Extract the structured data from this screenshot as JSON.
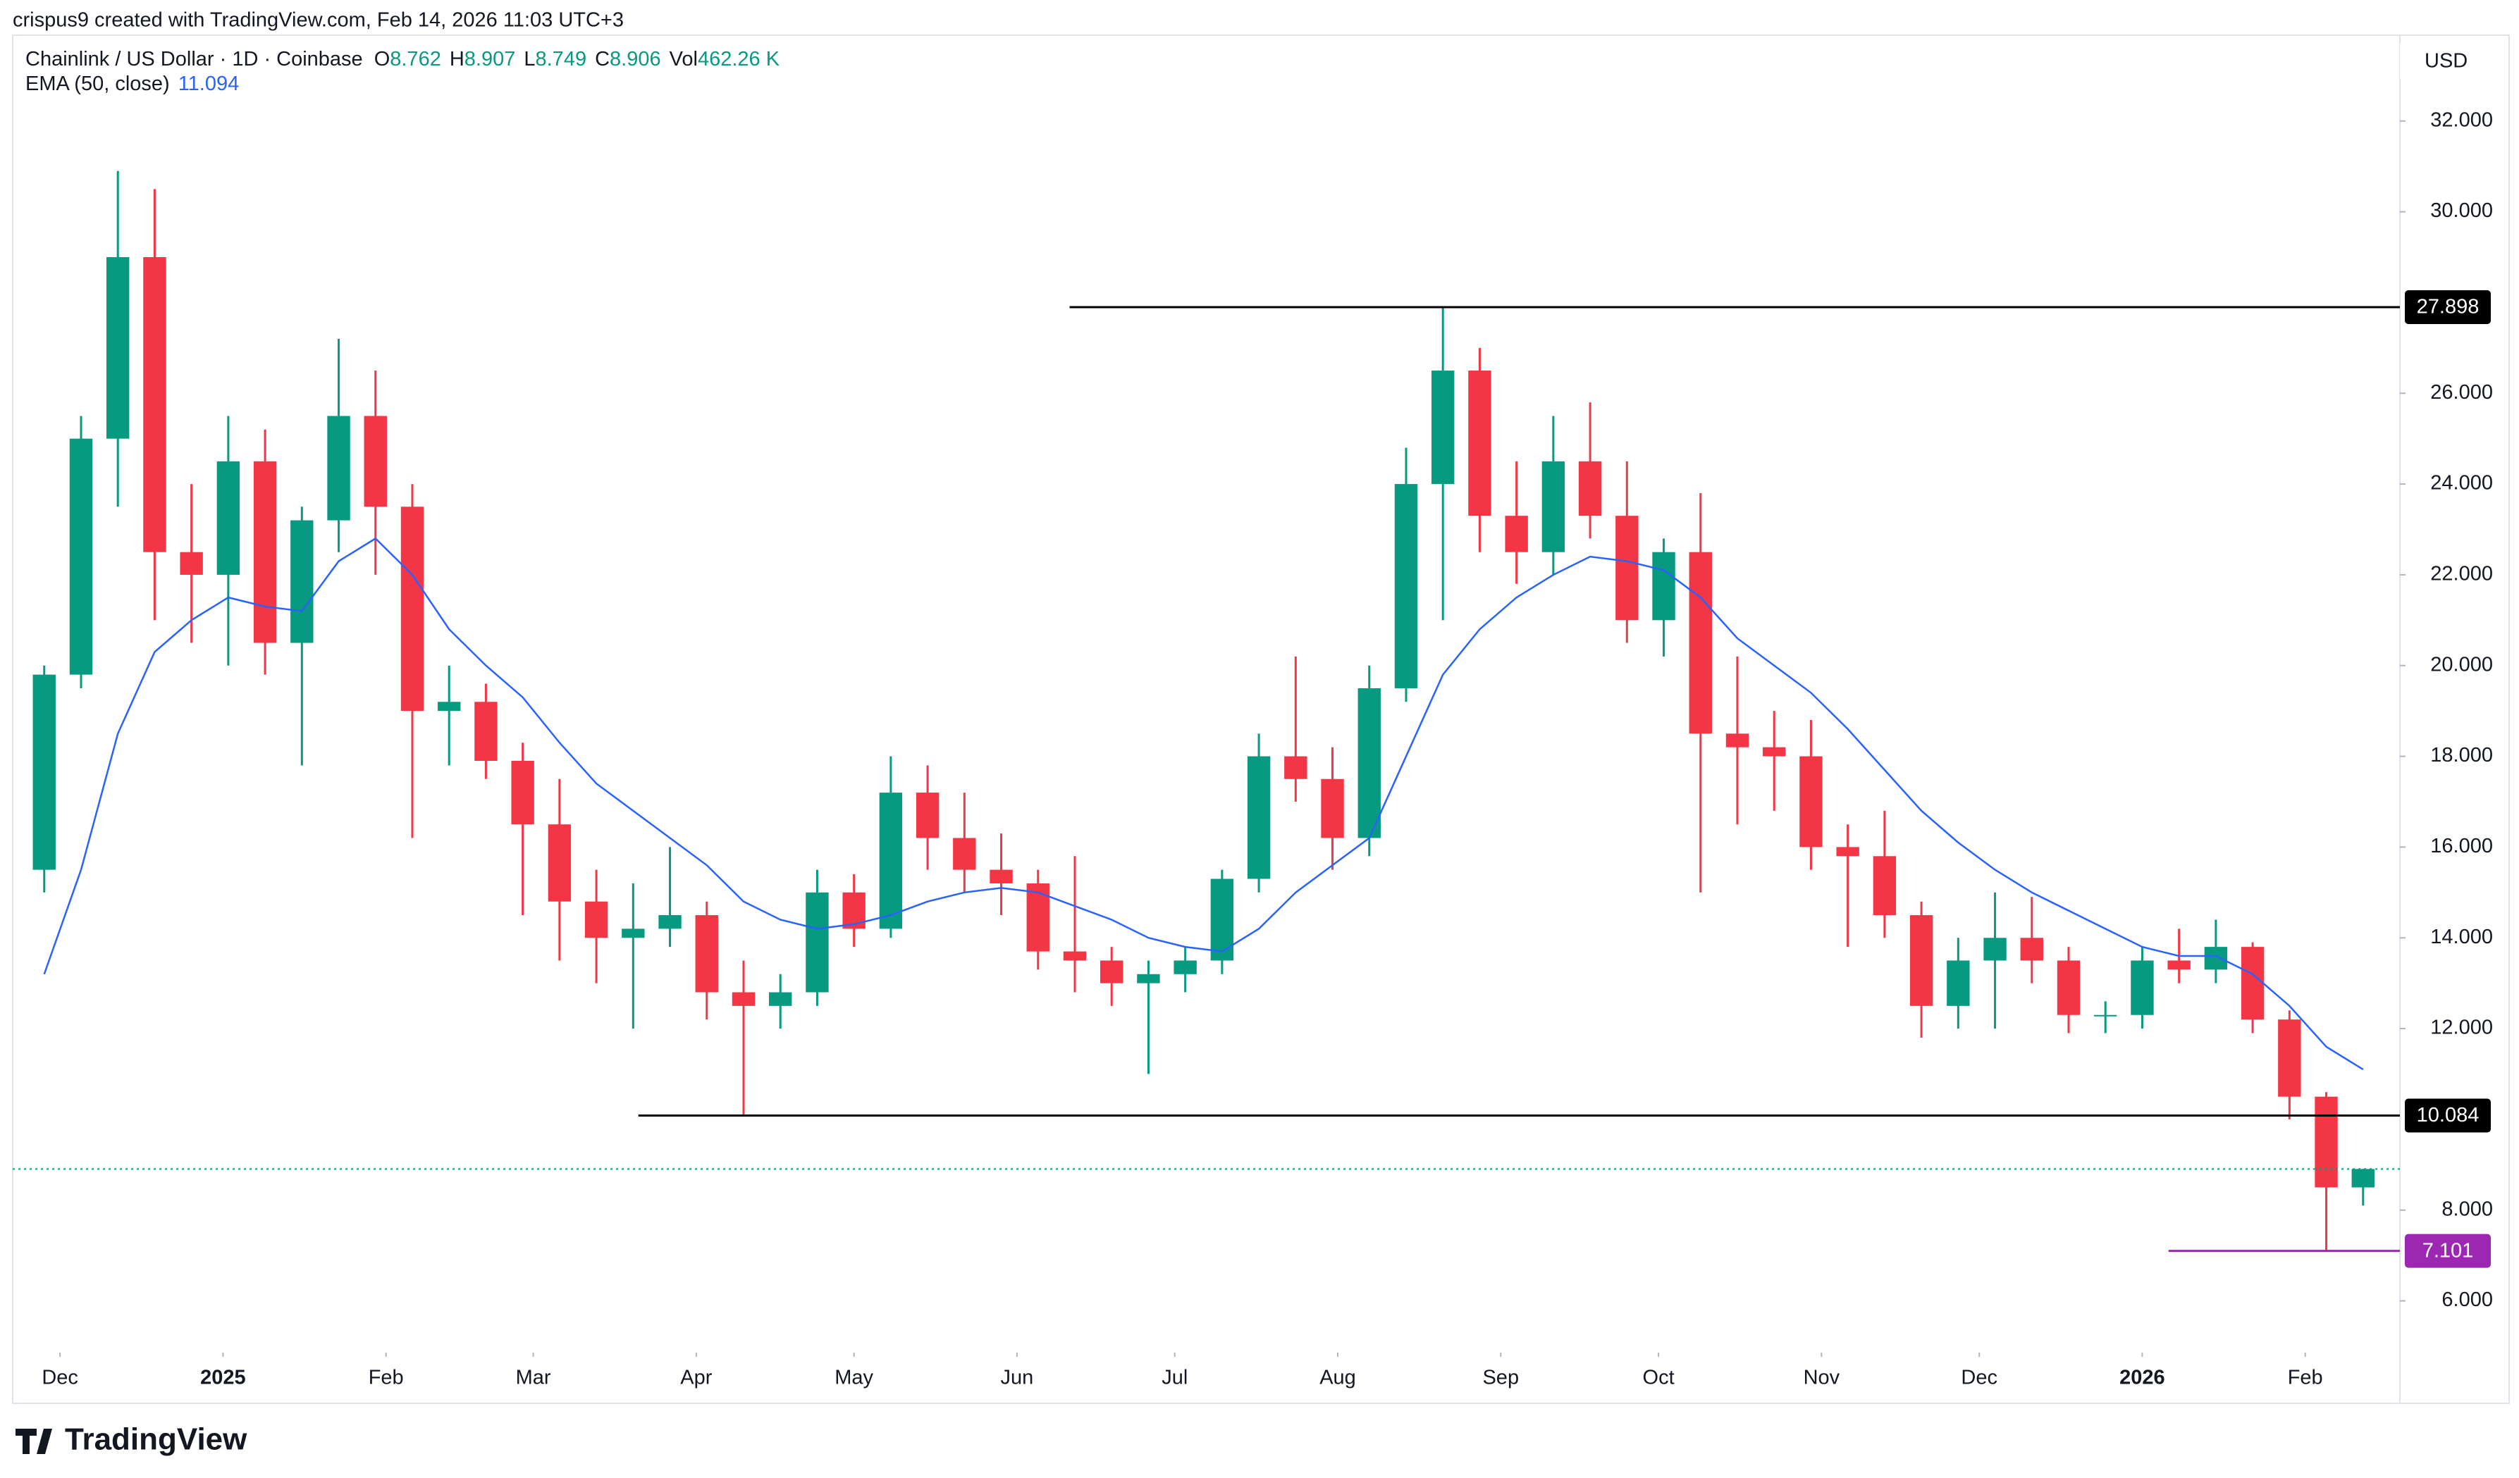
{
  "header": {
    "credit": "crispus9 created with TradingView.com, Feb 14, 2026 11:03 UTC+3"
  },
  "footer": {
    "brand": "TradingView"
  },
  "chart_data": {
    "type": "candlestick",
    "symbol": "Chainlink / US Dollar · 1D · Coinbase",
    "currency": "USD",
    "quote": [
      {
        "key": "O",
        "value": 8.762
      },
      {
        "key": "H",
        "value": 8.907
      },
      {
        "key": "L",
        "value": 8.749
      },
      {
        "key": "C",
        "value": 8.906
      },
      {
        "key": "Vol",
        "value": "462.26 K"
      }
    ],
    "up_color": "#089981",
    "down_color": "#f23645",
    "x": [
      -3,
      4,
      11,
      18,
      25,
      32,
      39,
      46,
      53,
      60,
      67,
      74,
      81,
      88,
      95,
      102,
      109,
      116,
      123,
      130,
      137,
      144,
      151,
      158,
      165,
      172,
      179,
      186,
      193,
      200,
      207,
      214,
      221,
      228,
      235,
      242,
      249,
      256,
      263,
      270,
      277,
      284,
      291,
      298,
      305,
      312,
      319,
      326,
      333,
      340,
      347,
      354,
      361,
      368,
      375,
      382,
      389,
      396,
      403,
      410,
      417,
      424,
      431,
      438
    ],
    "open": [
      15.5,
      19.8,
      25.0,
      29.0,
      22.5,
      22.0,
      24.5,
      20.5,
      23.2,
      25.5,
      23.5,
      19.0,
      19.2,
      17.9,
      16.5,
      14.8,
      14.0,
      14.2,
      14.5,
      12.8,
      12.5,
      12.8,
      15.0,
      14.2,
      17.2,
      16.2,
      15.5,
      15.2,
      13.7,
      13.5,
      13.0,
      13.2,
      13.5,
      15.3,
      18.0,
      17.5,
      16.2,
      19.5,
      24.0,
      26.5,
      23.3,
      22.5,
      24.5,
      23.3,
      21.0,
      22.5,
      18.5,
      18.2,
      18.0,
      16.0,
      15.8,
      14.5,
      12.5,
      13.5,
      14.0,
      13.5,
      12.3,
      12.3,
      13.5,
      13.3,
      13.8,
      12.2,
      10.5,
      8.5
    ],
    "high": [
      20.0,
      25.5,
      30.9,
      30.5,
      24.0,
      25.5,
      25.2,
      23.5,
      27.2,
      26.5,
      24.0,
      20.0,
      19.6,
      18.3,
      17.5,
      15.5,
      15.2,
      16.0,
      14.8,
      13.5,
      13.2,
      15.5,
      15.4,
      18.0,
      17.8,
      17.2,
      16.3,
      15.5,
      15.8,
      13.8,
      13.5,
      13.8,
      15.5,
      18.5,
      20.2,
      18.2,
      20.0,
      24.8,
      27.898,
      27.0,
      24.5,
      25.5,
      25.8,
      24.5,
      22.8,
      23.8,
      20.2,
      19.0,
      18.8,
      16.5,
      16.8,
      14.8,
      14.0,
      15.0,
      14.9,
      13.8,
      12.6,
      13.8,
      14.2,
      14.4,
      13.9,
      12.4,
      10.6,
      8.907
    ],
    "low": [
      15.0,
      19.5,
      23.5,
      21.0,
      20.5,
      20.0,
      19.8,
      17.8,
      22.5,
      22.0,
      16.2,
      17.8,
      17.5,
      14.5,
      13.5,
      13.0,
      12.0,
      13.8,
      12.2,
      10.1,
      12.0,
      12.5,
      13.8,
      14.0,
      15.5,
      15.0,
      14.5,
      13.3,
      12.8,
      12.5,
      11.0,
      12.8,
      13.2,
      15.0,
      17.0,
      15.5,
      15.8,
      19.2,
      21.0,
      22.5,
      21.8,
      22.0,
      22.8,
      20.5,
      20.2,
      15.0,
      16.5,
      16.8,
      15.5,
      13.8,
      14.0,
      11.8,
      12.0,
      12.0,
      13.0,
      11.9,
      11.9,
      12.0,
      13.0,
      13.0,
      11.9,
      10.0,
      7.101,
      8.1
    ],
    "close": [
      19.8,
      25.0,
      29.0,
      22.5,
      22.0,
      24.5,
      20.5,
      23.2,
      25.5,
      23.5,
      19.0,
      19.2,
      17.9,
      16.5,
      14.8,
      14.0,
      14.2,
      14.5,
      12.8,
      12.5,
      12.8,
      15.0,
      14.2,
      17.2,
      16.2,
      15.5,
      15.2,
      13.7,
      13.5,
      13.0,
      13.2,
      13.5,
      15.3,
      18.0,
      17.5,
      16.2,
      19.5,
      24.0,
      26.5,
      23.3,
      22.5,
      24.5,
      23.3,
      21.0,
      22.5,
      18.5,
      18.2,
      18.0,
      16.0,
      15.8,
      14.5,
      12.5,
      13.5,
      14.0,
      13.5,
      12.3,
      12.3,
      13.5,
      13.3,
      13.8,
      12.2,
      10.5,
      8.5,
      8.906
    ],
    "series": [
      {
        "name": "EMA (50, close)",
        "color": "#2962ff",
        "last": 11.094,
        "values": [
          13.2,
          15.5,
          18.5,
          20.3,
          21.0,
          21.5,
          21.3,
          21.2,
          22.3,
          22.8,
          22.0,
          20.8,
          20.0,
          19.3,
          18.3,
          17.4,
          16.8,
          16.2,
          15.6,
          14.8,
          14.4,
          14.2,
          14.3,
          14.5,
          14.8,
          15.0,
          15.1,
          15.0,
          14.7,
          14.4,
          14.0,
          13.8,
          13.7,
          14.2,
          15.0,
          15.6,
          16.2,
          18.0,
          19.8,
          20.8,
          21.5,
          22.0,
          22.4,
          22.3,
          22.1,
          21.5,
          20.6,
          20.0,
          19.4,
          18.6,
          17.7,
          16.8,
          16.1,
          15.5,
          15.0,
          14.6,
          14.2,
          13.8,
          13.6,
          13.6,
          13.2,
          12.5,
          11.6,
          11.1
        ]
      }
    ],
    "levels": [
      {
        "value": 27.898,
        "x_start": 192,
        "color": "#000000"
      },
      {
        "value": 10.084,
        "x_start": 110,
        "color": "#000000"
      },
      {
        "value": 7.101,
        "x_start": 401,
        "color": "#9c27b0"
      }
    ],
    "last_price": 8.906,
    "xlim": [
      -9,
      445
    ],
    "xticks": [
      {
        "value": 0,
        "label": "Dec"
      },
      {
        "value": 31,
        "label": "2025"
      },
      {
        "value": 62,
        "label": "Feb"
      },
      {
        "value": 90,
        "label": "Mar"
      },
      {
        "value": 121,
        "label": "Apr"
      },
      {
        "value": 151,
        "label": "May"
      },
      {
        "value": 182,
        "label": "Jun"
      },
      {
        "value": 212,
        "label": "Jul"
      },
      {
        "value": 243,
        "label": "Aug"
      },
      {
        "value": 274,
        "label": "Sep"
      },
      {
        "value": 304,
        "label": "Oct"
      },
      {
        "value": 335,
        "label": "Nov"
      },
      {
        "value": 365,
        "label": "Dec"
      },
      {
        "value": 396,
        "label": "2026"
      },
      {
        "value": 427,
        "label": "Feb"
      }
    ],
    "ylim": [
      4.86,
      33.89
    ],
    "yticks": [
      {
        "value": 6,
        "label": "6.000"
      },
      {
        "value": 8,
        "label": "8.000"
      },
      {
        "value": 12,
        "label": "12.000"
      },
      {
        "value": 14,
        "label": "14.000"
      },
      {
        "value": 16,
        "label": "16.000"
      },
      {
        "value": 18,
        "label": "18.000"
      },
      {
        "value": 20,
        "label": "20.000"
      },
      {
        "value": 22,
        "label": "22.000"
      },
      {
        "value": 24,
        "label": "24.000"
      },
      {
        "value": 26,
        "label": "26.000"
      },
      {
        "value": 30,
        "label": "30.000"
      },
      {
        "value": 32,
        "label": "32.000"
      }
    ]
  }
}
